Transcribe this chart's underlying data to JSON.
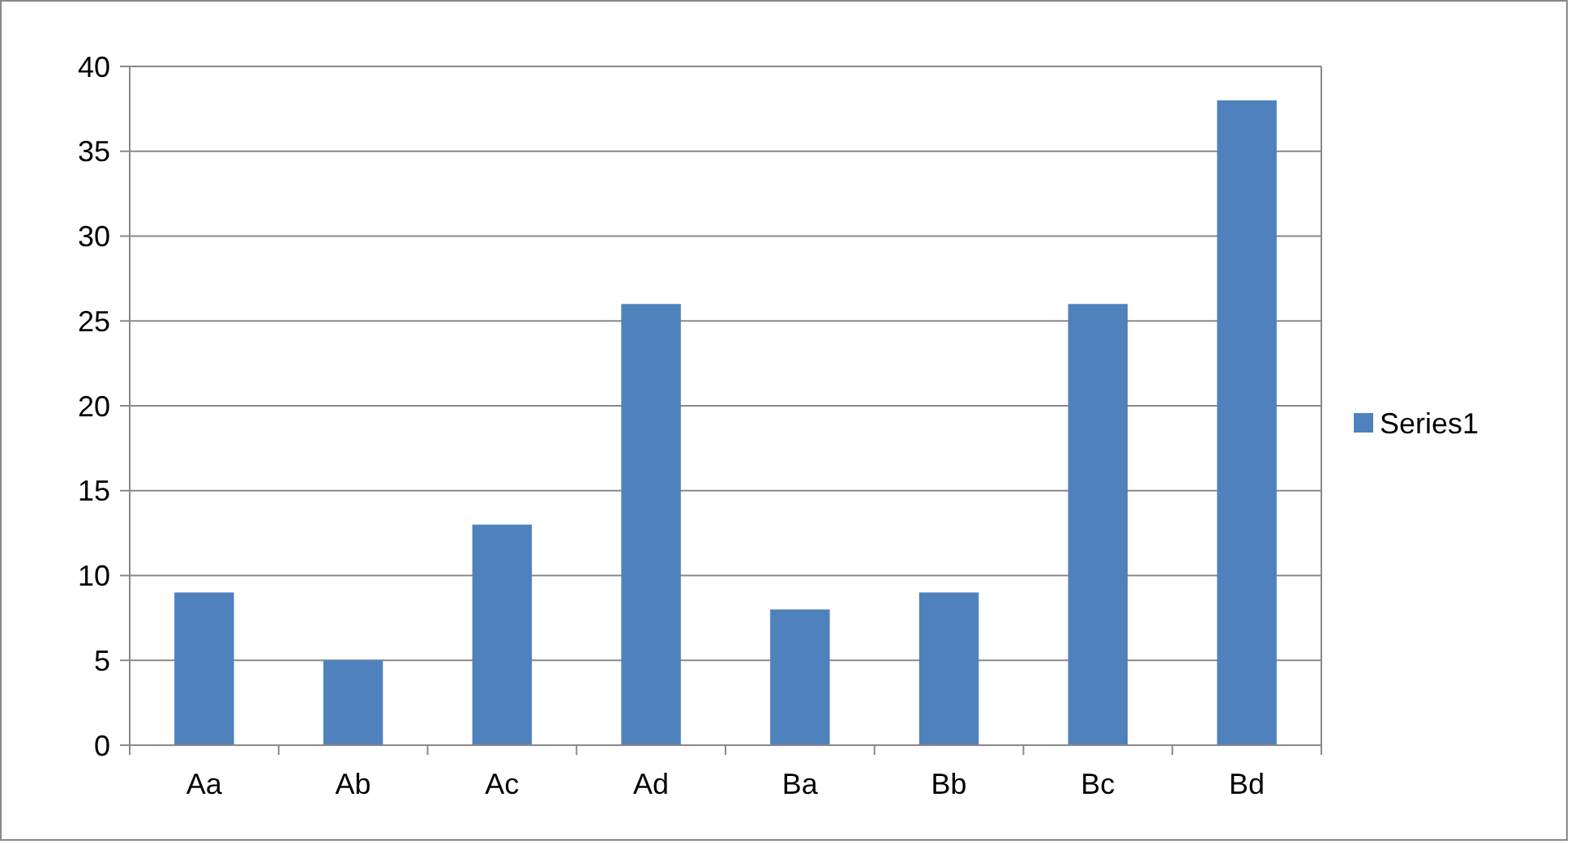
{
  "chart_data": {
    "type": "bar",
    "categories": [
      "Aa",
      "Ab",
      "Ac",
      "Ad",
      "Ba",
      "Bb",
      "Bc",
      "Bd"
    ],
    "series": [
      {
        "name": "Series1",
        "color": "#4f81bd",
        "values": [
          9,
          5,
          13,
          26,
          8,
          9,
          26,
          38
        ]
      }
    ],
    "ylim": [
      0,
      40
    ],
    "yticks": [
      0,
      5,
      10,
      15,
      20,
      25,
      30,
      35,
      40
    ],
    "grid": "y",
    "legend": "right"
  }
}
